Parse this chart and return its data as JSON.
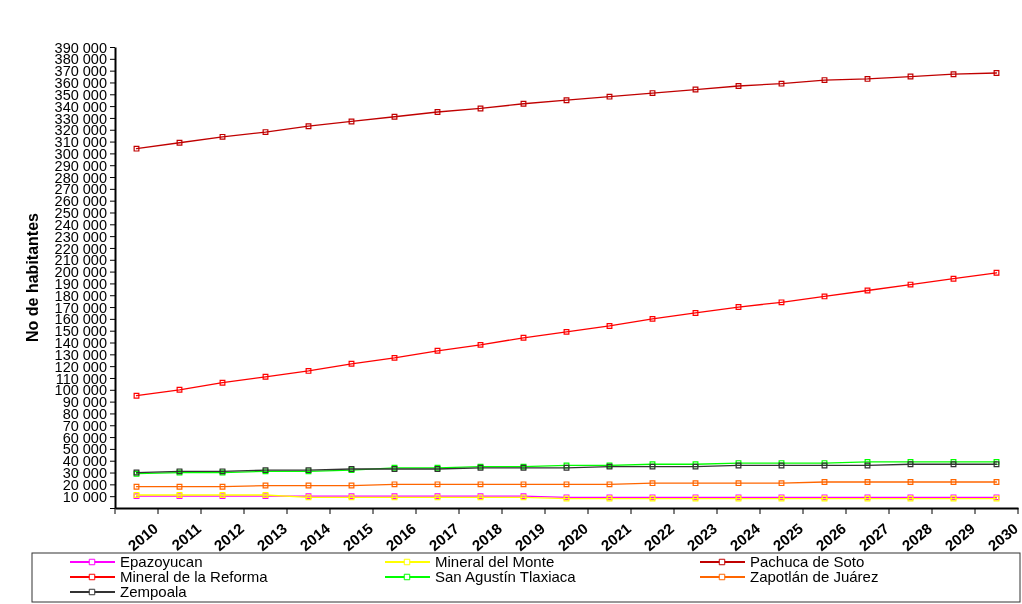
{
  "chart_data": {
    "type": "line",
    "ylabel": "No de habitantes",
    "categories": [
      "2010",
      "2011",
      "2012",
      "2013",
      "2014",
      "2015",
      "2016",
      "2017",
      "2018",
      "2019",
      "2020",
      "2021",
      "2022",
      "2023",
      "2024",
      "2025",
      "2026",
      "2027",
      "2028",
      "2029",
      "2030"
    ],
    "series": [
      {
        "name": "Epazoyucan",
        "color": "#ff00ff",
        "values": [
          10000,
          10000,
          10000,
          10000,
          10000,
          10000,
          10000,
          10000,
          10000,
          10000,
          9000,
          9000,
          9000,
          9000,
          9000,
          9000,
          9000,
          9000,
          9000,
          9000,
          9000
        ]
      },
      {
        "name": "Mineral del Monte",
        "color": "#ffff00",
        "values": [
          11000,
          11000,
          11000,
          11000,
          9000,
          9000,
          9000,
          9000,
          9000,
          9000,
          8000,
          8000,
          8000,
          8000,
          8000,
          8000,
          8000,
          8000,
          8000,
          8000,
          8000
        ]
      },
      {
        "name": "Pachuca de Soto",
        "color": "#c00000",
        "values": [
          304000,
          309000,
          314000,
          318000,
          323000,
          327000,
          331000,
          335000,
          338000,
          342000,
          345000,
          348000,
          351000,
          354000,
          357000,
          359000,
          362000,
          363000,
          365000,
          367000,
          368000
        ]
      },
      {
        "name": "Mineral de la Reforma",
        "color": "#ff0000",
        "values": [
          95000,
          100000,
          106000,
          111000,
          116000,
          122000,
          127000,
          133000,
          138000,
          144000,
          149000,
          154000,
          160000,
          165000,
          170000,
          174000,
          179000,
          184000,
          189000,
          194000,
          199000
        ]
      },
      {
        "name": "San Agustín Tlaxiaca",
        "color": "#00ff00",
        "values": [
          29000,
          30000,
          30000,
          31000,
          31000,
          32000,
          34000,
          34000,
          35000,
          35000,
          36000,
          36000,
          37000,
          37000,
          38000,
          38000,
          38000,
          39000,
          39000,
          39000,
          39000
        ]
      },
      {
        "name": "Zapotlán de Juárez",
        "color": "#ff6600",
        "values": [
          18000,
          18000,
          18000,
          19000,
          19000,
          19000,
          20000,
          20000,
          20000,
          20000,
          20000,
          20000,
          21000,
          21000,
          21000,
          21000,
          22000,
          22000,
          22000,
          22000,
          22000
        ]
      },
      {
        "name": "Zempoala",
        "color": "#333333",
        "values": [
          30000,
          31000,
          31000,
          32000,
          32000,
          33000,
          33000,
          33000,
          34000,
          34000,
          34000,
          35000,
          35000,
          35000,
          36000,
          36000,
          36000,
          36000,
          37000,
          37000,
          37000
        ]
      }
    ],
    "ylim": [
      0,
      390000
    ],
    "yticks": [
      {
        "value": 0,
        "label": null
      },
      {
        "value": 10000,
        "label": "10 000"
      },
      {
        "value": 20000,
        "label": "20 000"
      },
      {
        "value": 30000,
        "label": "30 000"
      },
      {
        "value": 40000,
        "label": "40 000"
      },
      {
        "value": 50000,
        "label": "50 000"
      },
      {
        "value": 60000,
        "label": "60 000"
      },
      {
        "value": 70000,
        "label": "70 000"
      },
      {
        "value": 80000,
        "label": "80 000"
      },
      {
        "value": 90000,
        "label": "90 000"
      },
      {
        "value": 100000,
        "label": "100 000"
      },
      {
        "value": 110000,
        "label": "110 000"
      },
      {
        "value": 120000,
        "label": "120 000"
      },
      {
        "value": 130000,
        "label": "130 000"
      },
      {
        "value": 140000,
        "label": "140 000"
      },
      {
        "value": 150000,
        "label": "150 000"
      },
      {
        "value": 160000,
        "label": "160 000"
      },
      {
        "value": 170000,
        "label": "170 000"
      },
      {
        "value": 180000,
        "label": "180 000"
      },
      {
        "value": 190000,
        "label": "190 000"
      },
      {
        "value": 200000,
        "label": "200 000"
      },
      {
        "value": 210000,
        "label": "210 000"
      },
      {
        "value": 220000,
        "label": "220 000"
      },
      {
        "value": 230000,
        "label": "230 000"
      },
      {
        "value": 240000,
        "label": "240 000"
      },
      {
        "value": 250000,
        "label": "250 000"
      },
      {
        "value": 260000,
        "label": "260 000"
      },
      {
        "value": 270000,
        "label": "270 000"
      },
      {
        "value": 280000,
        "label": "280 000"
      },
      {
        "value": 290000,
        "label": "290 000"
      },
      {
        "value": 300000,
        "label": "300 000"
      },
      {
        "value": 310000,
        "label": "310 000"
      },
      {
        "value": 320000,
        "label": "320 000"
      },
      {
        "value": 330000,
        "label": "330 000"
      },
      {
        "value": 340000,
        "label": "340 000"
      },
      {
        "value": 350000,
        "label": "350 000"
      },
      {
        "value": 360000,
        "label": "360 000"
      },
      {
        "value": 370000,
        "label": "370 000"
      },
      {
        "value": 380000,
        "label": "380 000"
      },
      {
        "value": 390000,
        "label": "390 000"
      }
    ],
    "grid": false,
    "legend": "bottom",
    "marker": "square",
    "line_style": "solid"
  }
}
